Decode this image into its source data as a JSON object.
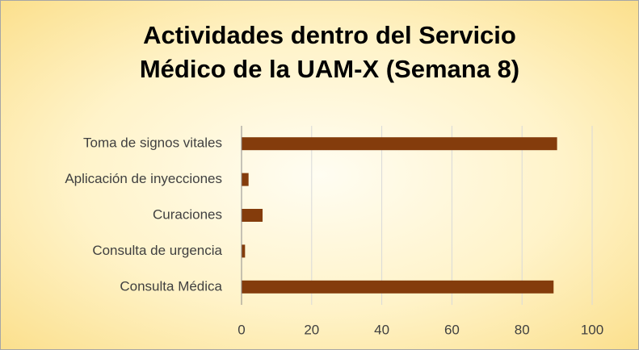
{
  "chart_data": {
    "type": "bar",
    "orientation": "horizontal",
    "title": [
      "Actividades dentro del Servicio",
      "Médico de la UAM-X (Semana 8)"
    ],
    "categories": [
      "Toma de signos vitales",
      "Aplicación de inyecciones",
      "Curaciones",
      "Consulta de urgencia",
      "Consulta Médica"
    ],
    "values": [
      90,
      2,
      6,
      1,
      89
    ],
    "color": "#843c0c",
    "xlim": [
      0,
      100
    ],
    "xticks": [
      0,
      20,
      40,
      60,
      80,
      100
    ],
    "grid": true
  }
}
